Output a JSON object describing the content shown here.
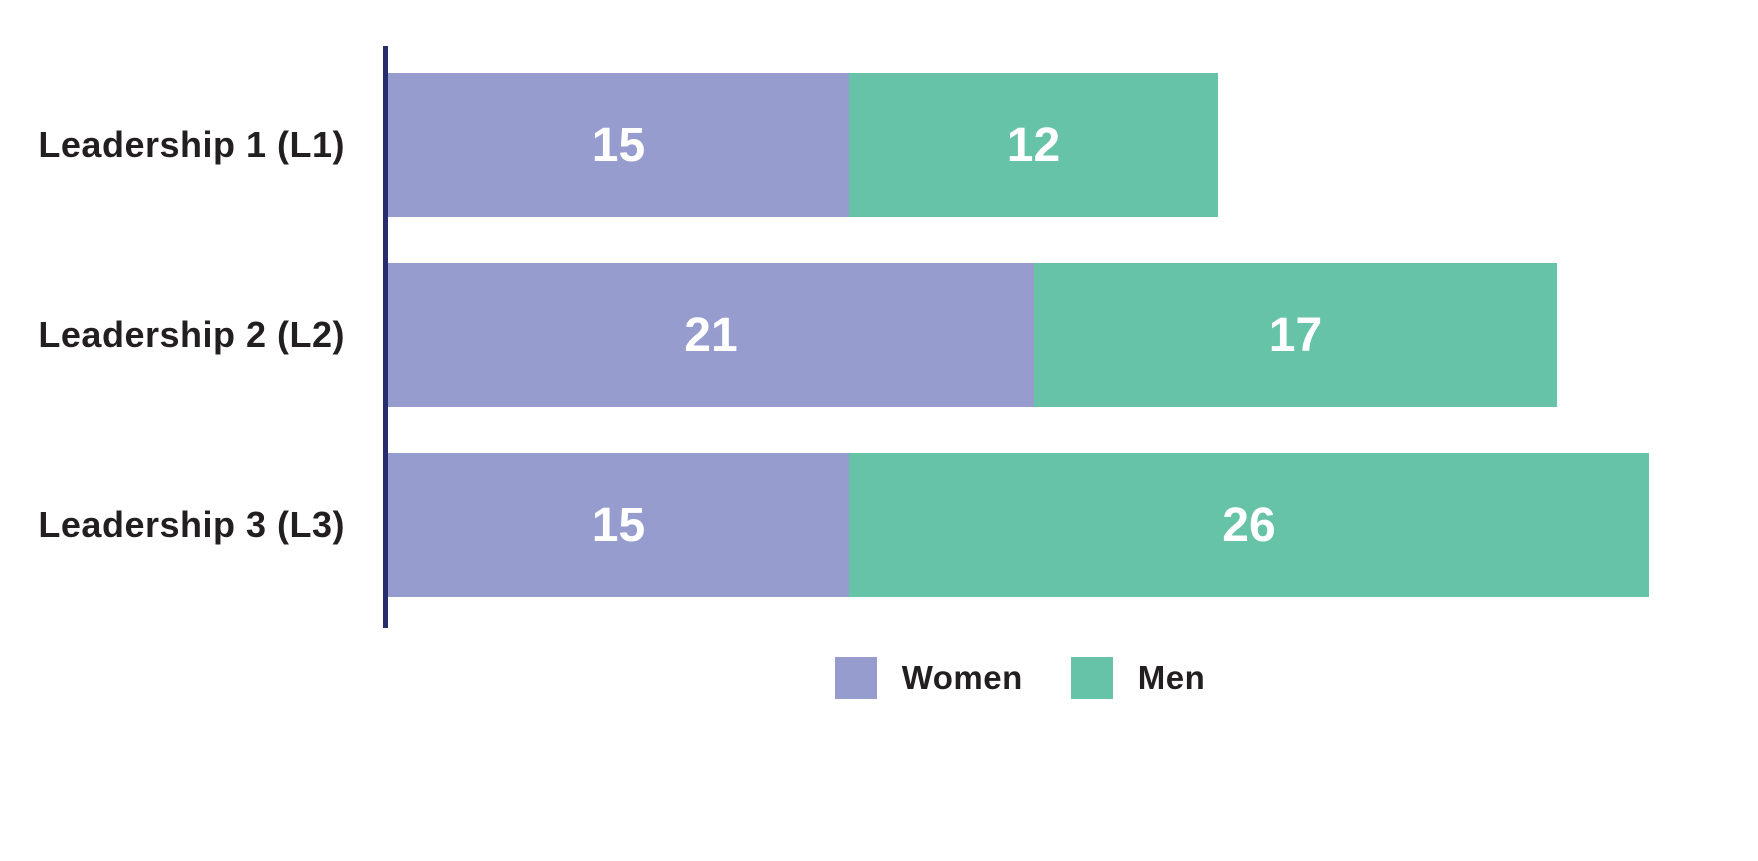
{
  "chart_data": {
    "type": "bar",
    "orientation": "horizontal",
    "stacked": true,
    "title": "",
    "xlabel": "",
    "ylabel": "",
    "categories": [
      "Leadership 1 (L1)",
      "Leadership 2 (L2)",
      "Leadership 3 (L3)"
    ],
    "series": [
      {
        "name": "Women",
        "color": "#969CCD",
        "values": [
          15,
          21,
          15
        ]
      },
      {
        "name": "Men",
        "color": "#66C3A8",
        "values": [
          12,
          17,
          26
        ]
      }
    ],
    "totals": [
      27,
      38,
      41
    ],
    "value_labels_position": "inside-center",
    "value_label_color": "#FFFFFF",
    "category_label_color": "#231F20",
    "axis_line_color": "#272D6C",
    "legend_position": "bottom",
    "legend_text_color": "#231F20",
    "grid": false,
    "x_axis_ticks_visible": false,
    "xlim": [
      0,
      41
    ]
  }
}
